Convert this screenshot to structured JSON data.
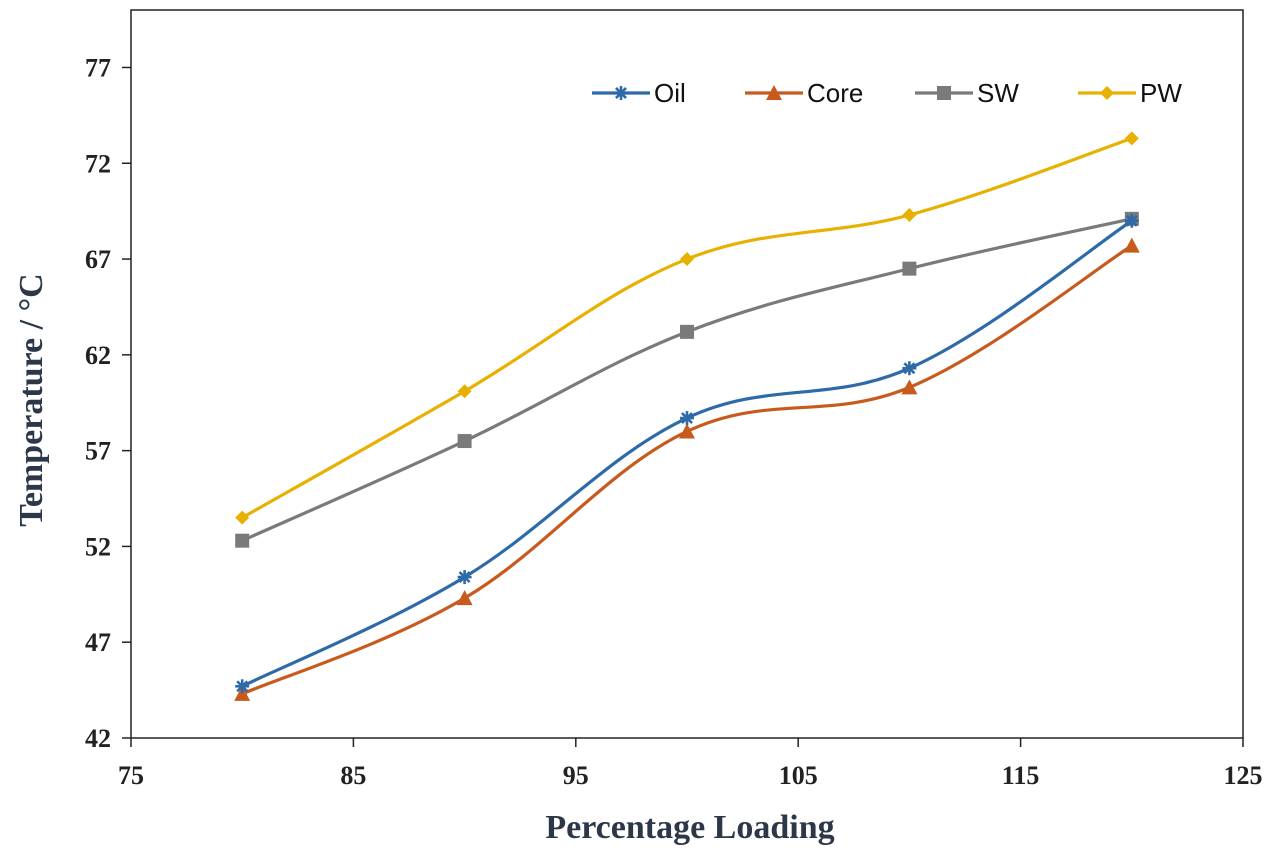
{
  "chart_data": {
    "type": "line",
    "title": "",
    "xlabel": "Percentage Loading",
    "ylabel": "Temperature / °C",
    "xlim": [
      75,
      125
    ],
    "ylim": [
      42,
      80
    ],
    "xticks": [
      75,
      85,
      95,
      105,
      115,
      125
    ],
    "yticks": [
      42,
      47,
      52,
      57,
      62,
      67,
      72,
      77
    ],
    "grid": false,
    "legend_position": "top-right",
    "x": [
      80,
      90,
      100,
      110,
      120
    ],
    "series": [
      {
        "name": "Oil",
        "color": "#2e6aa8",
        "marker": "star",
        "values": [
          44.7,
          50.4,
          58.7,
          61.3,
          69.0
        ]
      },
      {
        "name": "Core",
        "color": "#c75a1c",
        "marker": "triangle",
        "values": [
          44.3,
          49.3,
          58.0,
          60.3,
          67.7
        ]
      },
      {
        "name": "SW",
        "color": "#7a7a7a",
        "marker": "square",
        "values": [
          52.3,
          57.5,
          63.2,
          66.5,
          69.1
        ]
      },
      {
        "name": "PW",
        "color": "#e8b000",
        "marker": "diamond",
        "values": [
          53.5,
          60.1,
          67.0,
          69.3,
          73.3
        ]
      }
    ]
  }
}
